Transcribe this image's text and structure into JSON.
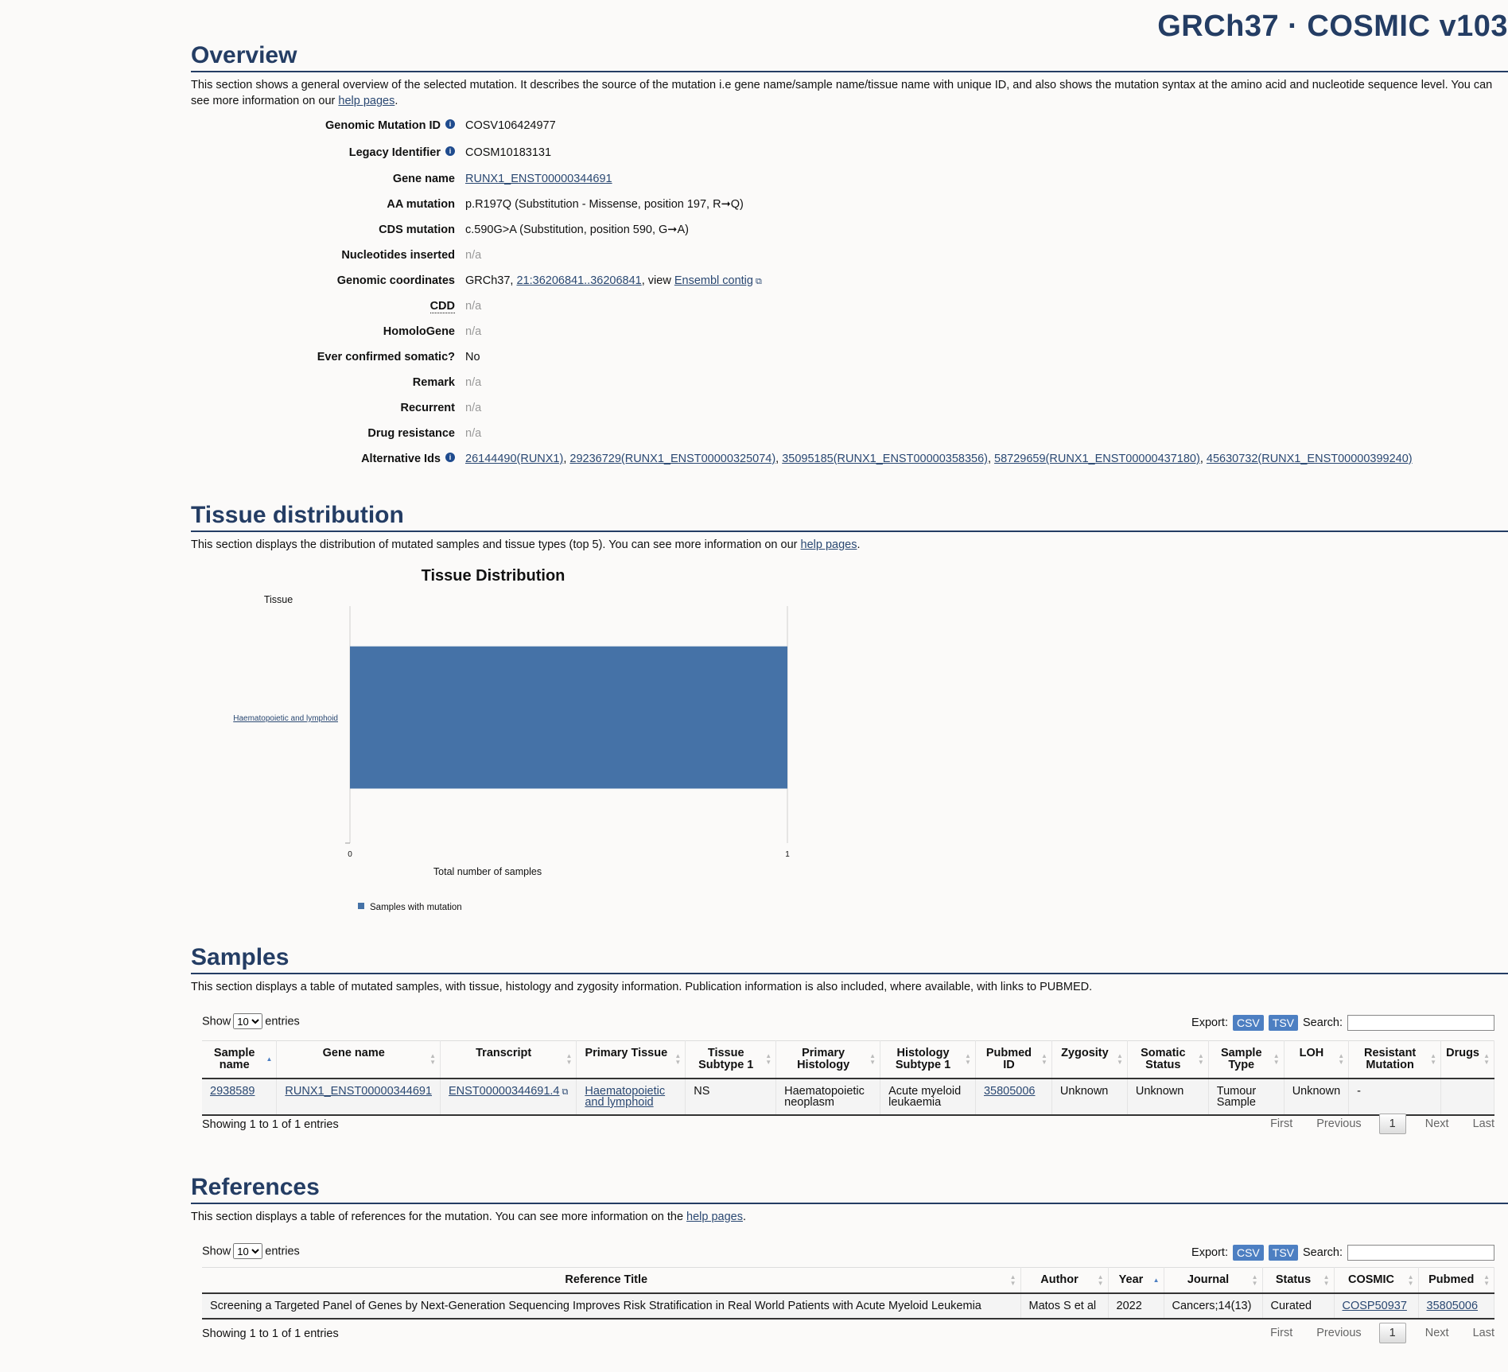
{
  "brand": "GRCh37 · COSMIC v103",
  "overview": {
    "title": "Overview",
    "desc_text": "This section shows a general overview of the selected mutation. It describes the source of the mutation i.e gene name/sample name/tissue name with unique ID, and also shows the mutation syntax at the amino acid and nucleotide sequence level. You can see more information on our ",
    "help_link": "help pages",
    "rows": {
      "genomic_mutation_id": {
        "label": "Genomic Mutation ID",
        "value": "COSV106424977"
      },
      "legacy_identifier": {
        "label": "Legacy Identifier",
        "value": "COSM10183131"
      },
      "gene_name": {
        "label": "Gene name",
        "value": "RUNX1_ENST00000344691"
      },
      "aa_mutation": {
        "label": "AA mutation",
        "value": "p.R197Q (Substitution - Missense, position 197, R➞Q)"
      },
      "cds_mutation": {
        "label": "CDS mutation",
        "value": "c.590G>A (Substitution, position 590, G➞A)"
      },
      "nucleotides_inserted": {
        "label": "Nucleotides inserted",
        "value": "n/a"
      },
      "genomic_coordinates": {
        "label": "Genomic coordinates",
        "prefix": "GRCh37, ",
        "coords": "21:36206841..36206841",
        "mid": ", view ",
        "contig": "Ensembl contig"
      },
      "cdd": {
        "label": "CDD",
        "value": "n/a"
      },
      "homologene": {
        "label": "HomoloGene",
        "value": "n/a"
      },
      "ever_confirmed": {
        "label": "Ever confirmed somatic?",
        "value": "No"
      },
      "remark": {
        "label": "Remark",
        "value": "n/a"
      },
      "recurrent": {
        "label": "Recurrent",
        "value": "n/a"
      },
      "drug_resistance": {
        "label": "Drug resistance",
        "value": "n/a"
      },
      "alternative_ids": {
        "label": "Alternative Ids",
        "ids": [
          "26144490(RUNX1)",
          "29236729(RUNX1_ENST00000325074)",
          "35095185(RUNX1_ENST00000358356)",
          "58729659(RUNX1_ENST00000437180)",
          "45630732(RUNX1_ENST00000399240)"
        ]
      }
    }
  },
  "tissue": {
    "title": "Tissue distribution",
    "desc_text": "This section displays the distribution of mutated samples and tissue types (top 5). You can see more information on our ",
    "help_link": "help pages"
  },
  "chart_data": {
    "type": "bar",
    "orientation": "horizontal",
    "title": "Tissue Distribution",
    "categories": [
      "Haematopoietic and lymphoid"
    ],
    "series": [
      {
        "name": "Samples with mutation",
        "values": [
          1
        ]
      }
    ],
    "xlabel": "Total number of samples",
    "ylabel": "Tissue",
    "xlim": [
      0,
      1
    ],
    "x_ticks": [
      "0",
      "1"
    ],
    "legend": "bottom-left",
    "color": "#4572a7"
  },
  "samples": {
    "title": "Samples",
    "desc": "This section displays a table of mutated samples, with tissue, histology and zygosity information. Publication information is also included, where available, with links to PUBMED.",
    "show_label": "Show",
    "entries_label": "entries",
    "page_size": "10",
    "export_label": "Export:",
    "csv": "CSV",
    "tsv": "TSV",
    "search_label": "Search:",
    "columns": [
      "Sample name",
      "Gene name",
      "Transcript",
      "Primary Tissue",
      "Tissue Subtype 1",
      "Primary Histology",
      "Histology Subtype 1",
      "Pubmed ID",
      "Zygosity",
      "Somatic Status",
      "Sample Type",
      "LOH",
      "Resistant Mutation",
      "Drugs"
    ],
    "row": {
      "sample_name": "2938589",
      "gene_name": "RUNX1_ENST00000344691",
      "transcript": "ENST00000344691.4",
      "primary_tissue": "Haematopoietic and lymphoid",
      "tissue_subtype": "NS",
      "primary_histology": "Haematopoietic neoplasm",
      "histology_subtype": "Acute myeloid leukaemia",
      "pubmed": "35805006",
      "zygosity": "Unknown",
      "somatic_status": "Unknown",
      "sample_type": "Tumour Sample",
      "loh": "Unknown",
      "resistant": "-",
      "drugs": ""
    },
    "info": "Showing 1 to 1 of 1 entries",
    "pager": {
      "first": "First",
      "previous": "Previous",
      "current": "1",
      "next": "Next",
      "last": "Last"
    }
  },
  "references": {
    "title": "References",
    "desc_text": "This section displays a table of references for the mutation. You can see more information on the ",
    "help_link": "help pages",
    "show_label": "Show",
    "entries_label": "entries",
    "page_size": "10",
    "export_label": "Export:",
    "csv": "CSV",
    "tsv": "TSV",
    "search_label": "Search:",
    "columns": [
      "Reference Title",
      "Author",
      "Year",
      "Journal",
      "Status",
      "COSMIC",
      "Pubmed"
    ],
    "row": {
      "title": "Screening a Targeted Panel of Genes by Next-Generation Sequencing Improves Risk Stratification in Real World Patients with Acute Myeloid Leukemia",
      "author": "Matos S et al",
      "year": "2022",
      "journal": "Cancers;14(13)",
      "status": "Curated",
      "cosmic": "COSP50937",
      "pubmed": "35805006"
    },
    "info": "Showing 1 to 1 of 1 entries",
    "pager": {
      "first": "First",
      "previous": "Previous",
      "current": "1",
      "next": "Next",
      "last": "Last"
    }
  }
}
